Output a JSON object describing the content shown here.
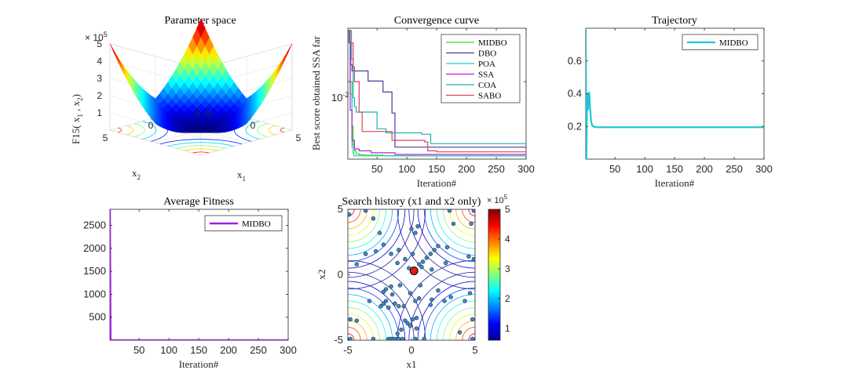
{
  "chart_data": [
    {
      "type": "surface",
      "title": "Parameter space",
      "xlabel": "x",
      "xlabel_sub": "1",
      "ylabel": "x",
      "ylabel_sub": "2",
      "zlabel": "F15( x",
      "zlabel_sub1": "1",
      "zlabel_mid": " , x",
      "zlabel_sub2": "2",
      "zlabel_end": ")",
      "exponent_base": "× 10",
      "exponent_power": "5",
      "z_ticks": [
        "1",
        "2",
        "3",
        "4",
        "5"
      ],
      "x_ticks": [
        "-5",
        "0",
        "5"
      ],
      "y_ticks": [
        "-5",
        "0",
        "5"
      ],
      "xlim": [
        -5,
        5
      ],
      "ylim": [
        -5,
        5
      ],
      "zlim": [
        0,
        5
      ],
      "colormap": "jet"
    },
    {
      "type": "line",
      "title": "Convergence curve",
      "xlabel": "Iteration#",
      "ylabel": "Best score obtained SSA far",
      "y_scale": "log",
      "y_tick_base": "10",
      "y_tick_exp": "-2",
      "x_ticks": [
        "50",
        "100",
        "150",
        "200",
        "250",
        "300"
      ],
      "xlim": [
        1,
        300
      ],
      "legend_position": "top-right",
      "series": [
        {
          "name": "MIDBO",
          "color": "#2ddc1e",
          "x": [
            1,
            5,
            8,
            10,
            12,
            15,
            20,
            30,
            60,
            120,
            300
          ],
          "y": [
            0.025,
            0.01,
            0.0045,
            0.0032,
            0.0029,
            0.00275,
            0.0027,
            0.00268,
            0.00266,
            0.00265,
            0.00264
          ]
        },
        {
          "name": "DBO",
          "color": "#4b3c9b",
          "x": [
            1,
            3,
            6,
            8,
            30,
            35,
            55,
            60,
            70,
            75,
            80,
            300
          ],
          "y": [
            0.025,
            0.02,
            0.0135,
            0.0121,
            0.0121,
            0.0101,
            0.0101,
            0.0083,
            0.0083,
            0.0057,
            0.0031,
            0.003
          ]
        },
        {
          "name": "POA",
          "color": "#1ecfc5",
          "x": [
            1,
            5,
            8,
            10,
            11,
            300
          ],
          "y": [
            0.025,
            0.008,
            0.0031,
            0.0028,
            0.00265,
            0.00265
          ]
        },
        {
          "name": "SSA",
          "color": "#c21ed7",
          "x": [
            1,
            5,
            8,
            12,
            20,
            40,
            80,
            300
          ],
          "y": [
            0.025,
            0.006,
            0.0035,
            0.003,
            0.0029,
            0.0028,
            0.00272,
            0.0027
          ]
        },
        {
          "name": "COA",
          "color": "#1eb2a8",
          "x": [
            1,
            5,
            7,
            10,
            12,
            15,
            35,
            50,
            60,
            65,
            85,
            120,
            125,
            135,
            140,
            300
          ],
          "y": [
            0.025,
            0.025,
            0.015,
            0.0075,
            0.0064,
            0.0058,
            0.0058,
            0.0043,
            0.0043,
            0.004,
            0.004,
            0.004,
            0.0039,
            0.0039,
            0.0033,
            0.0033
          ]
        },
        {
          "name": "SABO",
          "color": "#d7475e",
          "x": [
            1,
            3,
            5,
            10,
            12,
            20,
            25,
            40,
            60,
            75,
            110,
            130,
            135,
            145,
            150,
            300
          ],
          "y": [
            0.025,
            0.025,
            0.02,
            0.013,
            0.01,
            0.0058,
            0.0041,
            0.0041,
            0.0041,
            0.0035,
            0.0035,
            0.0034,
            0.0029,
            0.0029,
            0.00285,
            0.00285
          ]
        }
      ]
    },
    {
      "type": "line",
      "title": "Trajectory",
      "xlabel": "Iteration#",
      "y_ticks": [
        "0.2",
        "0.4",
        "0.6"
      ],
      "x_ticks": [
        "50",
        "100",
        "150",
        "200",
        "250",
        "300"
      ],
      "xlim": [
        1,
        300
      ],
      "ylim": [
        0.0,
        0.8
      ],
      "legend_position": "top-right",
      "series": [
        {
          "name": "MIDBO",
          "color": "#1ec6d3",
          "x": [
            1,
            2,
            3,
            4,
            5,
            6,
            7,
            8,
            9,
            10,
            12,
            15,
            20,
            30,
            50,
            100,
            200,
            300
          ],
          "y": [
            0.8,
            0.0,
            0.3,
            0.4,
            0.3,
            0.41,
            0.4,
            0.33,
            0.28,
            0.23,
            0.205,
            0.198,
            0.195,
            0.195,
            0.195,
            0.195,
            0.195,
            0.195
          ]
        }
      ]
    },
    {
      "type": "line",
      "title": "Average Fitness",
      "xlabel": "Iteration#",
      "y_ticks": [
        "500",
        "1000",
        "1500",
        "2000",
        "2500"
      ],
      "x_ticks": [
        "50",
        "100",
        "150",
        "200",
        "250",
        "300"
      ],
      "xlim": [
        1,
        300
      ],
      "ylim": [
        0,
        2850
      ],
      "legend_position": "top-right",
      "series": [
        {
          "name": "MIDBO",
          "color": "#a11ee3",
          "x": [
            1,
            2,
            3,
            4,
            6,
            300
          ],
          "y": [
            2850,
            0,
            0,
            0,
            0,
            0
          ]
        }
      ]
    },
    {
      "type": "scatter",
      "title": "Search history (x1 and x2 only)",
      "xlabel": "x1",
      "ylabel": "x2",
      "x_ticks": [
        "-5",
        "0",
        "5"
      ],
      "y_ticks": [
        "-5",
        "0",
        "5"
      ],
      "xlim": [
        -5,
        5
      ],
      "ylim": [
        -5,
        5
      ],
      "colorbar_ticks": [
        "1",
        "2",
        "3",
        "4",
        "5"
      ],
      "colorbar_exp_base": "× 10",
      "colorbar_exp_power": "5",
      "colorbar_range": [
        0.6,
        5
      ],
      "point_color": "#3e8ac9",
      "best_point": {
        "x": 0.2,
        "y": 0.3,
        "color": "#e31b1b"
      },
      "points": [
        [
          -4.8,
          -4.9
        ],
        [
          -3.0,
          -4.9
        ],
        [
          -1.8,
          -4.9
        ],
        [
          -1.6,
          -4.9
        ],
        [
          -1.4,
          -4.9
        ],
        [
          -1.2,
          -4.9
        ],
        [
          -1.0,
          -4.9
        ],
        [
          -0.7,
          -4.9
        ],
        [
          0.3,
          -4.9
        ],
        [
          1.0,
          -4.9
        ],
        [
          4.8,
          -4.9
        ],
        [
          -4.8,
          -3.4
        ],
        [
          -4.3,
          -3.5
        ],
        [
          -0.5,
          -3.5
        ],
        [
          -0.3,
          -3.7
        ],
        [
          -0.1,
          -3.9
        ],
        [
          0.1,
          -3.4
        ],
        [
          0.4,
          -3.3
        ],
        [
          -0.8,
          -4.2
        ],
        [
          -1.1,
          -4.5
        ],
        [
          0.4,
          -4.1
        ],
        [
          3.8,
          -4.4
        ],
        [
          4.8,
          -3.4
        ],
        [
          -3.3,
          -2.0
        ],
        [
          -2.4,
          -2.4
        ],
        [
          -2.2,
          -2.2
        ],
        [
          -2.0,
          -2.0
        ],
        [
          -1.8,
          -2.5
        ],
        [
          -1.5,
          -1.5
        ],
        [
          -1.3,
          -2.2
        ],
        [
          -1.0,
          -2.4
        ],
        [
          -0.6,
          -2.4
        ],
        [
          0.3,
          -2.0
        ],
        [
          0.6,
          -1.8
        ],
        [
          1.5,
          -2.3
        ],
        [
          2.6,
          -2.0
        ],
        [
          3.1,
          -1.7
        ],
        [
          4.2,
          -2.0
        ],
        [
          4.6,
          -1.4
        ],
        [
          -2.2,
          -1.3
        ],
        [
          -2.0,
          -1.1
        ],
        [
          -1.6,
          -0.9
        ],
        [
          -0.9,
          -0.8
        ],
        [
          0.7,
          -0.8
        ],
        [
          2.1,
          -1.2
        ],
        [
          1.6,
          -1.9
        ],
        [
          -0.1,
          -1.4
        ],
        [
          -4.3,
          0.8
        ],
        [
          -3.6,
          1.6
        ],
        [
          -2.8,
          1.8
        ],
        [
          -1.6,
          1.6
        ],
        [
          -1.1,
          0.9
        ],
        [
          -0.2,
          0.5
        ],
        [
          0.6,
          0.8
        ],
        [
          0.9,
          1.0
        ],
        [
          1.2,
          1.3
        ],
        [
          1.5,
          1.6
        ],
        [
          1.8,
          1.9
        ],
        [
          2.1,
          2.2
        ],
        [
          0.8,
          0.6
        ],
        [
          1.6,
          0.4
        ],
        [
          2.7,
          0.9
        ],
        [
          4.5,
          1.4
        ],
        [
          4.9,
          1.2
        ],
        [
          -2.2,
          2.3
        ],
        [
          2.8,
          2.1
        ],
        [
          -3.6,
          4.9
        ],
        [
          -3.0,
          4.3
        ],
        [
          -2.5,
          3.2
        ],
        [
          0.0,
          3.5
        ],
        [
          0.3,
          3.2
        ],
        [
          0.5,
          3.7
        ],
        [
          3.0,
          4.9
        ],
        [
          3.3,
          3.9
        ],
        [
          4.7,
          3.9
        ],
        [
          4.9,
          4.9
        ],
        [
          -4.9,
          4.6
        ],
        [
          -1.0,
          1.9
        ],
        [
          -0.5,
          1.2
        ],
        [
          0.1,
          1.6
        ]
      ]
    }
  ]
}
